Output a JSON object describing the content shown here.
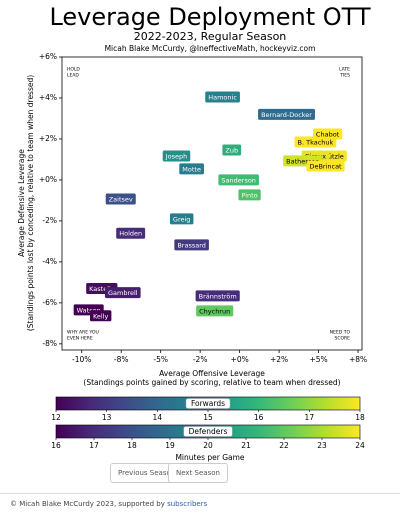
{
  "chart_data": {
    "type": "labeled-scatter",
    "title": "Leverage Deployment OTT",
    "subtitle": "2022-2023, Regular Season",
    "credit": "Micah Blake McCurdy, @IneffectiveMath, hockeyviz.com",
    "xlabel": [
      "Average Offensive Leverage",
      "(Standings points gained by scoring, relative to team when dressed)"
    ],
    "ylabel": [
      "Average Defensive Leverage",
      "(Standings points lost by conceding, relative to team when dressed)"
    ],
    "xlim": [
      -11.25,
      7.75
    ],
    "ylim": [
      -8.3,
      6
    ],
    "xticks": [
      {
        "value": -10,
        "label": "-10%"
      },
      {
        "value": -7.5,
        "label": "-8%"
      },
      {
        "value": -5,
        "label": "-5%"
      },
      {
        "value": -2.5,
        "label": "-2%"
      },
      {
        "value": 0,
        "label": "+0%"
      },
      {
        "value": 2.5,
        "label": "+2%"
      },
      {
        "value": 5,
        "label": "+5%"
      },
      {
        "value": 7.5,
        "label": "+8%"
      }
    ],
    "yticks": [
      {
        "value": 6,
        "label": "+6%"
      },
      {
        "value": 4,
        "label": "+4%"
      },
      {
        "value": 2,
        "label": "+2%"
      },
      {
        "value": 0,
        "label": "+0%"
      },
      {
        "value": -2,
        "label": "-2%"
      },
      {
        "value": -4,
        "label": "-4%"
      },
      {
        "value": -6,
        "label": "-6%"
      },
      {
        "value": -8,
        "label": "-8%"
      }
    ],
    "annotations": [
      {
        "lines": [
          "HOLD",
          "LEAD"
        ],
        "corner": "top-left"
      },
      {
        "lines": [
          "LATE",
          "TIES"
        ],
        "corner": "top-right"
      },
      {
        "lines": [
          "WHY ARE YOU",
          "EVEN HERE"
        ],
        "corner": "bottom-left"
      },
      {
        "lines": [
          "NEED TO",
          "SCORE"
        ],
        "corner": "bottom-right"
      }
    ],
    "colormap": "viridis",
    "colorbar_label": "Minutes per Game",
    "groups": [
      {
        "name": "Forwards",
        "clim": [
          12,
          18
        ],
        "ticks": [
          12,
          13,
          14,
          15,
          16,
          17,
          18
        ]
      },
      {
        "name": "Defenders",
        "clim": [
          16,
          24
        ],
        "ticks": [
          16,
          17,
          18,
          19,
          20,
          21,
          22,
          23,
          24
        ]
      }
    ],
    "points": [
      {
        "label": "Hamonic",
        "group": 1,
        "x": -1.08,
        "y": 4.05,
        "minutes": 19.5
      },
      {
        "label": "Bernard-Docker",
        "group": 1,
        "x": 2.97,
        "y": 3.2,
        "minutes": 18.8
      },
      {
        "label": "Chabot",
        "group": 1,
        "x": 5.57,
        "y": 2.24,
        "minutes": 24
      },
      {
        "label": "B. Tkachuk",
        "group": 0,
        "x": 4.8,
        "y": 1.85,
        "minutes": 18
      },
      {
        "label": "Zub",
        "group": 1,
        "x": -0.5,
        "y": 1.46,
        "minutes": 21
      },
      {
        "label": "Joseph",
        "group": 0,
        "x": -4.0,
        "y": 1.17,
        "minutes": 15
      },
      {
        "label": "Stützle",
        "group": 0,
        "x": 5.88,
        "y": 1.17,
        "minutes": 17.9
      },
      {
        "label": "Giroux",
        "group": 0,
        "x": 4.8,
        "y": 1.17,
        "minutes": 17.8
      },
      {
        "label": "Batherson",
        "group": 0,
        "x": 4.0,
        "y": 0.93,
        "minutes": 17.6
      },
      {
        "label": "DeBrincat",
        "group": 0,
        "x": 5.44,
        "y": 0.68,
        "minutes": 18
      },
      {
        "label": "Motte",
        "group": 0,
        "x": -3.04,
        "y": 0.54,
        "minutes": 14.5
      },
      {
        "label": "Sanderson",
        "group": 1,
        "x": -0.06,
        "y": 0,
        "minutes": 21.5
      },
      {
        "label": "Pinto",
        "group": 0,
        "x": 0.63,
        "y": -0.73,
        "minutes": 16.3
      },
      {
        "label": "Zaitsev",
        "group": 1,
        "x": -7.53,
        "y": -0.93,
        "minutes": 18
      },
      {
        "label": "Greig",
        "group": 0,
        "x": -3.67,
        "y": -1.9,
        "minutes": 14.5
      },
      {
        "label": "Holden",
        "group": 1,
        "x": -6.9,
        "y": -2.6,
        "minutes": 17
      },
      {
        "label": "Brassard",
        "group": 0,
        "x": -3.04,
        "y": -3.17,
        "minutes": 13
      },
      {
        "label": "Kastelic",
        "group": 0,
        "x": -8.73,
        "y": -5.3,
        "minutes": 12.2
      },
      {
        "label": "Gambrell",
        "group": 0,
        "x": -7.4,
        "y": -5.5,
        "minutes": 12.5
      },
      {
        "label": "Brännström",
        "group": 1,
        "x": -1.39,
        "y": -5.66,
        "minutes": 17
      },
      {
        "label": "Watson",
        "group": 0,
        "x": -9.56,
        "y": -6.34,
        "minutes": 12
      },
      {
        "label": "Chychrun",
        "group": 1,
        "x": -1.58,
        "y": -6.39,
        "minutes": 22
      },
      {
        "label": "Kelly",
        "group": 0,
        "x": -8.8,
        "y": -6.63,
        "minutes": 12
      }
    ]
  },
  "buttons": [
    "Previous Season",
    "Next Season"
  ],
  "footer": {
    "text": "© Micah Blake McCurdy 2023, supported by ",
    "link": "subscribers"
  }
}
